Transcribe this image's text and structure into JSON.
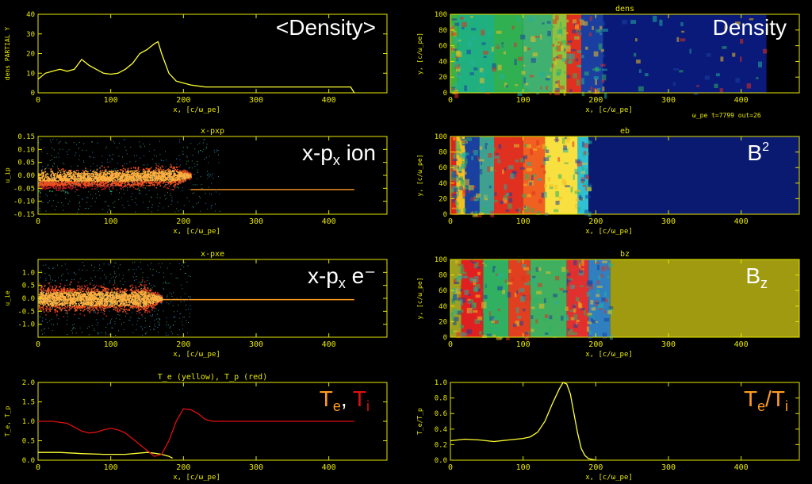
{
  "colors": {
    "axis": "#e8e800",
    "yellow": "#ffff33",
    "red": "#e01010",
    "bg": "#000000"
  },
  "status": "ω_pe t=7799  out=26",
  "chart_data": [
    {
      "id": "density-profile",
      "type": "line",
      "label": "<Density>",
      "xlabel": "x, [c/ω_pe]",
      "ylabel": "dens PARTIAL Y",
      "xlim": [
        0,
        480
      ],
      "ylim": [
        0,
        40
      ],
      "xticks": [
        0,
        100,
        200,
        300,
        400
      ],
      "yticks": [
        0,
        10,
        20,
        30,
        40
      ],
      "series": [
        {
          "color": "#ffff33",
          "x": [
            0,
            10,
            20,
            30,
            40,
            50,
            60,
            70,
            80,
            90,
            100,
            110,
            120,
            130,
            140,
            150,
            160,
            165,
            170,
            175,
            180,
            190,
            200,
            210,
            230,
            300,
            400,
            430,
            435
          ],
          "y": [
            7,
            10,
            11,
            12,
            11,
            12,
            17,
            14,
            12,
            10,
            9.5,
            10,
            12,
            15,
            20,
            22,
            25,
            26,
            20,
            15,
            10,
            6,
            5,
            4,
            3,
            3,
            3,
            3,
            0
          ]
        }
      ]
    },
    {
      "id": "x-pxp",
      "type": "scatter",
      "title": "x-pxp",
      "label_main": "x-p",
      "label_sub": "x",
      "label_tail": " ion",
      "xlabel": "x, [c/ω_pe]",
      "ylabel": "u_ip",
      "xlim": [
        0,
        480
      ],
      "ylim": [
        -0.15,
        0.15
      ],
      "xticks": [
        0,
        100,
        200,
        300,
        400
      ],
      "yticks": [
        -0.15,
        -0.1,
        -0.05,
        0.0,
        0.05,
        0.1,
        0.15
      ],
      "ytick_labels": [
        "-0.15",
        "-0.10",
        "-0.05",
        "0.00",
        "0.05",
        "0.10",
        "0.15"
      ],
      "beam_level": -0.055,
      "front": 210,
      "end": 435
    },
    {
      "id": "x-pxe",
      "type": "scatter",
      "title": "x-pxe",
      "label_main": "x-p",
      "label_sub": "x",
      "label_tail": " e⁻",
      "xlabel": "x, [c/ω_pe]",
      "ylabel": "u_ie",
      "xlim": [
        0,
        480
      ],
      "ylim": [
        -1.5,
        1.5
      ],
      "xticks": [
        0,
        100,
        200,
        300,
        400
      ],
      "yticks": [
        -1.0,
        -0.5,
        0.0,
        0.5,
        1.0
      ],
      "ytick_labels": [
        "-1.0",
        "-0.5",
        "0.0",
        "0.5",
        "1.0"
      ],
      "beam_level": -0.05,
      "front": 170,
      "end": 435
    },
    {
      "id": "temperature",
      "type": "line",
      "title": "T_e (yellow), T_p (red)",
      "label_parts": [
        "T",
        "e",
        ", ",
        "T",
        "i"
      ],
      "xlabel": "x, [c/ω_pe]",
      "ylabel": "T_e, T_p",
      "xlim": [
        0,
        480
      ],
      "ylim": [
        0,
        2.0
      ],
      "xticks": [
        0,
        100,
        200,
        300,
        400
      ],
      "yticks": [
        0.0,
        0.5,
        1.0,
        1.5,
        2.0
      ],
      "ytick_labels": [
        "0.0",
        "0.5",
        "1.0",
        "1.5",
        "2.0"
      ],
      "series": [
        {
          "name": "T_e (yellow)",
          "color": "#ffff33",
          "x": [
            0,
            30,
            60,
            90,
            120,
            150,
            160,
            170,
            180,
            185
          ],
          "y": [
            0.2,
            0.2,
            0.17,
            0.15,
            0.15,
            0.2,
            0.18,
            0.15,
            0.1,
            0.05
          ]
        },
        {
          "name": "T_p (red)",
          "color": "#e01010",
          "x": [
            0,
            20,
            40,
            50,
            60,
            70,
            80,
            90,
            100,
            110,
            120,
            130,
            140,
            150,
            160,
            170,
            180,
            190,
            200,
            210,
            220,
            230,
            240,
            260,
            300,
            400,
            435
          ],
          "y": [
            1.0,
            1.0,
            0.95,
            0.85,
            0.75,
            0.7,
            0.72,
            0.78,
            0.82,
            0.78,
            0.7,
            0.55,
            0.4,
            0.25,
            0.1,
            0.15,
            0.5,
            1.0,
            1.32,
            1.3,
            1.2,
            1.05,
            1.0,
            1.0,
            1.0,
            1.0,
            1.0
          ]
        }
      ]
    },
    {
      "id": "dens-map",
      "type": "heatmap",
      "title": "dens",
      "label": "Density",
      "xlabel": "x, [c/ω_pe]",
      "ylabel": "y, [c/ω_pe]",
      "xlim": [
        0,
        480
      ],
      "ylim": [
        0,
        100
      ],
      "xticks": [
        0,
        100,
        200,
        300,
        400
      ],
      "yticks": [
        0,
        20,
        40,
        60,
        80,
        100
      ],
      "bands": [
        [
          0,
          10,
          "#40b040"
        ],
        [
          10,
          60,
          "#20b080"
        ],
        [
          60,
          100,
          "#30b050"
        ],
        [
          100,
          140,
          "#40b070"
        ],
        [
          140,
          160,
          "#90c040"
        ],
        [
          160,
          180,
          "#e03020"
        ],
        [
          180,
          210,
          "#1a3fa0"
        ],
        [
          210,
          435,
          "#0a1a7a"
        ],
        [
          435,
          480,
          "#000000"
        ]
      ]
    },
    {
      "id": "eb-map",
      "type": "heatmap",
      "title": "eb",
      "label_main": "B",
      "label_sup": "2",
      "xlabel": "x, [c/ω_pe]",
      "ylabel": "y, [c/ω_pe]",
      "xlim": [
        0,
        480
      ],
      "ylim": [
        0,
        100
      ],
      "xticks": [
        0,
        100,
        200,
        300,
        400
      ],
      "yticks": [
        0,
        20,
        40,
        60,
        80,
        100
      ],
      "bands": [
        [
          0,
          8,
          "#e02020"
        ],
        [
          8,
          20,
          "#f0c020"
        ],
        [
          20,
          40,
          "#1a40a0"
        ],
        [
          40,
          60,
          "#40a090"
        ],
        [
          60,
          100,
          "#e03020"
        ],
        [
          100,
          130,
          "#f06020"
        ],
        [
          130,
          175,
          "#f8e040"
        ],
        [
          175,
          190,
          "#30c0d0"
        ],
        [
          190,
          480,
          "#0a1a70"
        ]
      ]
    },
    {
      "id": "bz-map",
      "type": "heatmap",
      "title": "bz",
      "label_main": "B",
      "label_sub": "z",
      "xlabel": "x, [c/ω_pe]",
      "ylabel": "y, [c/ω_pe]",
      "xlim": [
        0,
        480
      ],
      "ylim": [
        0,
        100
      ],
      "xticks": [
        0,
        100,
        200,
        300,
        400
      ],
      "yticks": [
        0,
        20,
        40,
        60,
        80,
        100
      ],
      "bands": [
        [
          0,
          15,
          "#a0a020"
        ],
        [
          15,
          45,
          "#e02020"
        ],
        [
          45,
          80,
          "#30b060"
        ],
        [
          80,
          110,
          "#e04020"
        ],
        [
          110,
          160,
          "#40b060"
        ],
        [
          160,
          190,
          "#e03030"
        ],
        [
          190,
          220,
          "#3080c0"
        ],
        [
          220,
          480,
          "#a09a10"
        ]
      ]
    },
    {
      "id": "te-ti",
      "type": "line",
      "label_parts": [
        "T",
        "e",
        "/T",
        "i"
      ],
      "xlabel": "x, [c/ω_pe]",
      "ylabel": "T_e/T_p",
      "xlim": [
        0,
        480
      ],
      "ylim": [
        0,
        1.0
      ],
      "xticks": [
        0,
        100,
        200,
        300,
        400
      ],
      "yticks": [
        0.0,
        0.2,
        0.4,
        0.6,
        0.8,
        1.0
      ],
      "ytick_labels": [
        "0.0",
        "0.2",
        "0.4",
        "0.6",
        "0.8",
        "1.0"
      ],
      "series": [
        {
          "color": "#ffff33",
          "x": [
            0,
            20,
            40,
            60,
            80,
            100,
            110,
            120,
            130,
            140,
            150,
            155,
            160,
            165,
            170,
            175,
            180,
            185,
            190,
            200
          ],
          "y": [
            0.25,
            0.27,
            0.26,
            0.24,
            0.26,
            0.28,
            0.3,
            0.36,
            0.5,
            0.72,
            0.92,
            1.0,
            0.98,
            0.85,
            0.6,
            0.35,
            0.15,
            0.06,
            0.02,
            0.0
          ]
        }
      ]
    }
  ]
}
